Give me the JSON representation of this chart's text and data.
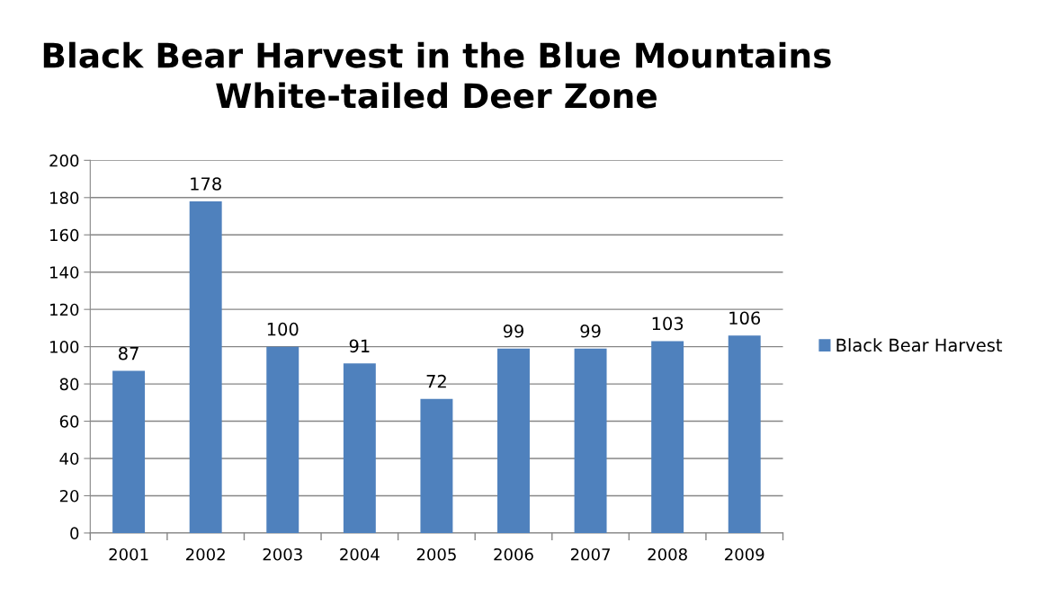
{
  "chart_data": {
    "type": "bar",
    "title": "Black Bear Harvest in the Blue Mountains\nWhite-tailed Deer Zone",
    "categories": [
      "2001",
      "2002",
      "2003",
      "2004",
      "2005",
      "2006",
      "2007",
      "2008",
      "2009"
    ],
    "series": [
      {
        "name": "Black Bear Harvest",
        "color": "#4f81bd",
        "values": [
          87,
          178,
          100,
          91,
          72,
          99,
          99,
          103,
          106
        ]
      }
    ],
    "ylim": [
      0,
      200
    ],
    "yticks": [
      0,
      20,
      40,
      60,
      80,
      100,
      120,
      140,
      160,
      180,
      200
    ],
    "grid": "y",
    "legend": "right",
    "data_labels": true
  }
}
